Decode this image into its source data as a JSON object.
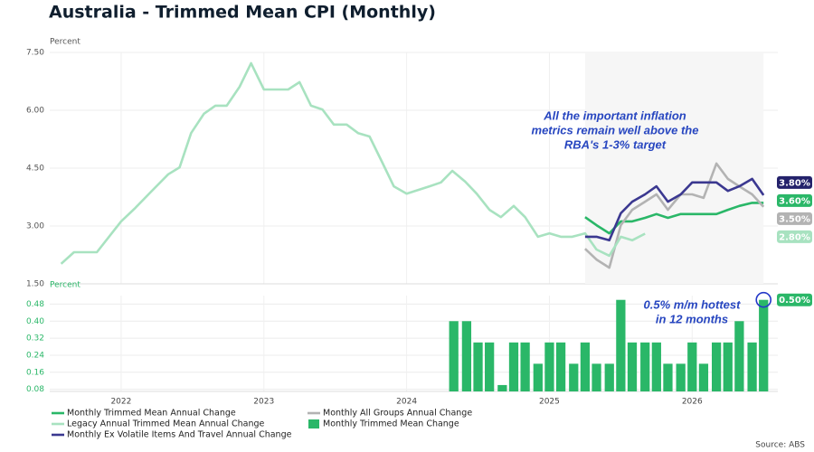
{
  "title": "Australia - Trimmed Mean CPI (Monthly)",
  "source": "Source: ABS",
  "chart_data": [
    {
      "type": "line",
      "y_label": "Percent",
      "annotation": [
        "All the important inflation",
        "metrics remain well above the",
        "RBA's 1-3% target"
      ],
      "xlim": [
        2021.5,
        2026.6
      ],
      "xticks": [
        2022,
        2023,
        2024,
        2025,
        2026
      ],
      "ylim": [
        1.5,
        7.5
      ],
      "yticks": [
        {
          "value": 1.5,
          "label": "1.50"
        },
        {
          "value": 3,
          "label": "3.00"
        },
        {
          "value": 4.5,
          "label": "4.50"
        },
        {
          "value": 6,
          "label": "6.00"
        },
        {
          "value": 7.5,
          "label": "7.50"
        }
      ],
      "grid": true,
      "series": [
        {
          "name": "Monthly Trimmed Mean Annual Change",
          "color": "#2ab768",
          "end_label": "3.60%",
          "x": [
            2025.25,
            2025.33,
            2025.42,
            2025.5,
            2025.58,
            2025.67,
            2025.75,
            2025.83,
            2025.92,
            2026.0,
            2026.08,
            2026.17,
            2026.25,
            2026.33,
            2026.42,
            2026.5
          ],
          "values": [
            3.23,
            3.02,
            2.81,
            3.12,
            3.12,
            3.21,
            3.31,
            3.21,
            3.31,
            3.31,
            3.31,
            3.31,
            3.42,
            3.52,
            3.6,
            3.6
          ]
        },
        {
          "name": "Monthly All Groups Annual Change",
          "color": "#b3b3b3",
          "end_label": "3.50%",
          "x": [
            2025.25,
            2025.33,
            2025.42,
            2025.5,
            2025.58,
            2025.67,
            2025.75,
            2025.83,
            2025.92,
            2026.0,
            2026.08,
            2026.17,
            2026.25,
            2026.33,
            2026.42,
            2026.5
          ],
          "values": [
            2.41,
            2.13,
            1.92,
            3.02,
            3.42,
            3.63,
            3.82,
            3.42,
            3.82,
            3.82,
            3.73,
            4.62,
            4.22,
            4.03,
            3.82,
            3.5
          ]
        },
        {
          "name": "Legacy Annual Trimmed Mean Annual Change",
          "color": "#a8e2c0",
          "end_label": "2.80%",
          "x": [
            2021.58,
            2021.67,
            2021.83,
            2022.0,
            2022.1,
            2022.21,
            2022.33,
            2022.41,
            2022.49,
            2022.58,
            2022.66,
            2022.74,
            2022.83,
            2022.91,
            2023.0,
            2023.17,
            2023.25,
            2023.33,
            2023.41,
            2023.49,
            2023.58,
            2023.66,
            2023.74,
            2023.83,
            2023.91,
            2024.0,
            2024.16,
            2024.24,
            2024.32,
            2024.41,
            2024.49,
            2024.58,
            2024.66,
            2024.75,
            2024.83,
            2024.92,
            2025.0,
            2025.08,
            2025.16,
            2025.25,
            2025.33,
            2025.42,
            2025.5,
            2025.58,
            2025.67
          ],
          "values": [
            2.02,
            2.32,
            2.32,
            3.12,
            3.47,
            3.89,
            4.34,
            4.52,
            5.41,
            5.91,
            6.12,
            6.12,
            6.61,
            7.22,
            6.54,
            6.54,
            6.73,
            6.12,
            6.02,
            5.63,
            5.63,
            5.41,
            5.32,
            4.64,
            4.03,
            3.84,
            4.03,
            4.13,
            4.43,
            4.15,
            3.84,
            3.42,
            3.23,
            3.52,
            3.23,
            2.72,
            2.81,
            2.72,
            2.72,
            2.81,
            2.39,
            2.23,
            2.72,
            2.63,
            2.8
          ]
        },
        {
          "name": "Monthly Ex Volatile Items And Travel Annual Change",
          "color": "#3b3890",
          "label_color": "#24226b",
          "end_label": "3.80%",
          "x": [
            2025.25,
            2025.33,
            2025.42,
            2025.5,
            2025.58,
            2025.67,
            2025.75,
            2025.83,
            2025.92,
            2026.0,
            2026.08,
            2026.17,
            2026.25,
            2026.33,
            2026.42,
            2026.5
          ],
          "values": [
            2.72,
            2.72,
            2.63,
            3.33,
            3.63,
            3.82,
            4.03,
            3.63,
            3.82,
            4.13,
            4.13,
            4.13,
            3.91,
            4.03,
            4.22,
            3.8
          ]
        }
      ]
    },
    {
      "type": "bar",
      "y_label": "Percent",
      "annotation": [
        "0.5% m/m hottest",
        "in 12 months"
      ],
      "xlim": [
        2021.5,
        2026.6
      ],
      "xticks": [
        2022,
        2023,
        2024,
        2025,
        2026
      ],
      "ylim": [
        0.07,
        0.52
      ],
      "yticks": [
        0.08,
        0.16,
        0.24,
        0.32,
        {
          "value": 0.4,
          "label": "0.40"
        },
        0.48
      ],
      "grid": true,
      "series": [
        {
          "name": "Monthly Trimmed Mean Change",
          "color": "#2ab768",
          "end_label": "0.50%",
          "x": [
            2024.33,
            2024.42,
            2024.5,
            2024.58,
            2024.67,
            2024.75,
            2024.83,
            2024.92,
            2025.0,
            2025.08,
            2025.17,
            2025.25,
            2025.33,
            2025.42,
            2025.5,
            2025.58,
            2025.67,
            2025.75,
            2025.83,
            2025.92,
            2026.0,
            2026.08,
            2026.17,
            2026.25,
            2026.33,
            2026.42,
            2026.5
          ],
          "values": [
            0.4,
            0.4,
            0.3,
            0.3,
            0.1,
            0.3,
            0.3,
            0.2,
            0.3,
            0.3,
            0.2,
            0.3,
            0.2,
            0.2,
            0.5,
            0.3,
            0.3,
            0.3,
            0.2,
            0.2,
            0.3,
            0.2,
            0.3,
            0.3,
            0.4,
            0.3,
            0.5
          ]
        }
      ]
    }
  ]
}
